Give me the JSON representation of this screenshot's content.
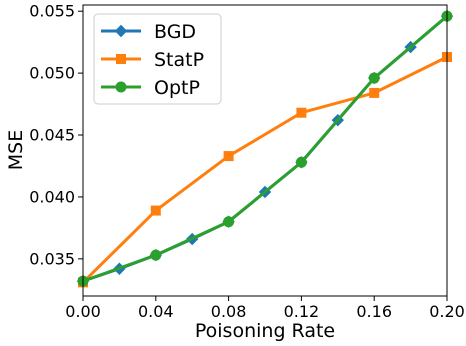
{
  "chart_data": {
    "type": "line",
    "title": "",
    "xlabel": "Poisoning Rate",
    "ylabel": "MSE",
    "xlim": [
      0.0,
      0.2
    ],
    "ylim": [
      0.032,
      0.0555
    ],
    "xticks": [
      0.0,
      0.04,
      0.08,
      0.12,
      0.16,
      0.2
    ],
    "xtick_labels": [
      "0.00",
      "0.04",
      "0.08",
      "0.12",
      "0.16",
      "0.20"
    ],
    "yticks": [
      0.035,
      0.04,
      0.045,
      0.05,
      0.055
    ],
    "ytick_labels": [
      "0.035",
      "0.040",
      "0.045",
      "0.050",
      "0.055"
    ],
    "grid": false,
    "legend_position": "top-left",
    "series": [
      {
        "name": "BGD",
        "color": "#1f77b4",
        "marker": "diamond",
        "x": [
          0.0,
          0.02,
          0.04,
          0.06,
          0.08,
          0.1,
          0.12,
          0.14,
          0.16,
          0.18,
          0.2
        ],
        "y": [
          0.0332,
          0.0342,
          0.0353,
          0.0366,
          0.038,
          0.0404,
          0.0428,
          0.0462,
          0.0496,
          0.0521,
          0.0546
        ]
      },
      {
        "name": "StatP",
        "color": "#ff7f0e",
        "marker": "square",
        "x": [
          0.0,
          0.04,
          0.08,
          0.12,
          0.16,
          0.2
        ],
        "y": [
          0.0331,
          0.0389,
          0.0433,
          0.0468,
          0.0484,
          0.0513
        ]
      },
      {
        "name": "OptP",
        "color": "#2ca02c",
        "marker": "circle",
        "x": [
          0.0,
          0.04,
          0.08,
          0.12,
          0.16,
          0.2
        ],
        "y": [
          0.0332,
          0.0353,
          0.038,
          0.0428,
          0.0496,
          0.0546
        ]
      }
    ]
  }
}
